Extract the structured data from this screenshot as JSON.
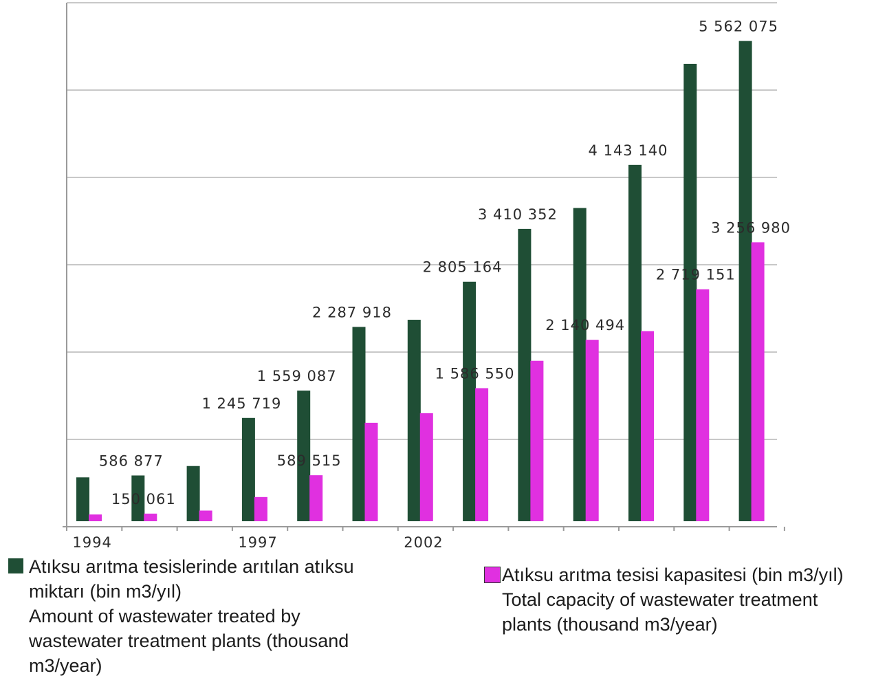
{
  "chart_data": {
    "type": "bar",
    "categories": [
      "1994",
      "",
      "",
      "1997",
      "",
      "",
      "2002",
      "",
      "",
      "",
      "",
      "",
      ""
    ],
    "series": [
      {
        "name": "Atıksu arıtma tesislerinde arıtılan atıksu miktarı (bin m3/yıl) Amount of wastewater treated by wastewater treatment plants (thousand m3/year)",
        "color": "#1f4e35",
        "values": [
          565000,
          586877,
          695000,
          1245719,
          1559087,
          2287918,
          2370000,
          2805164,
          3410352,
          3650000,
          4143140,
          5300000,
          5562075
        ],
        "data_labels": [
          "",
          "586 877",
          "",
          "1 245 719",
          "1 559 087",
          "2 287 918",
          "",
          "2 805 164",
          "3 410 352",
          "",
          "4 143 140",
          "",
          "5 562 075"
        ]
      },
      {
        "name": "Atıksu arıtma tesisi kapasitesi (bin m3/yıl) Total capacity of wastewater treatment plants (thousand m3/year)",
        "color": "#e030e0",
        "values": [
          140000,
          150061,
          185000,
          340000,
          589515,
          1190000,
          1300000,
          1586550,
          1900000,
          2140494,
          2240000,
          2719151,
          3256980
        ],
        "data_labels": [
          "",
          "150 061",
          "",
          "",
          "589 515",
          "",
          "",
          "1 586 550",
          "",
          "2 140 494",
          "",
          "2 719 151",
          "3 256 980"
        ]
      }
    ],
    "x_ticks": [
      "1994",
      "1997",
      "2002"
    ],
    "ylim": [
      0,
      6000000
    ],
    "grid": true,
    "legend_position": "bottom",
    "title": "",
    "xlabel": "",
    "ylabel": ""
  },
  "legend": {
    "treated_lines": [
      "Atıksu arıtma tesislerinde arıtılan atıksu",
      "miktarı (bin m3/yıl)",
      "Amount of wastewater treated by",
      "wastewater treatment plants (thousand",
      "m3/year)"
    ],
    "capacity_lines": [
      "Atıksu arıtma tesisi kapasitesi (bin m3/yıl)",
      "Total capacity of wastewater treatment",
      "plants (thousand m3/year)"
    ]
  }
}
